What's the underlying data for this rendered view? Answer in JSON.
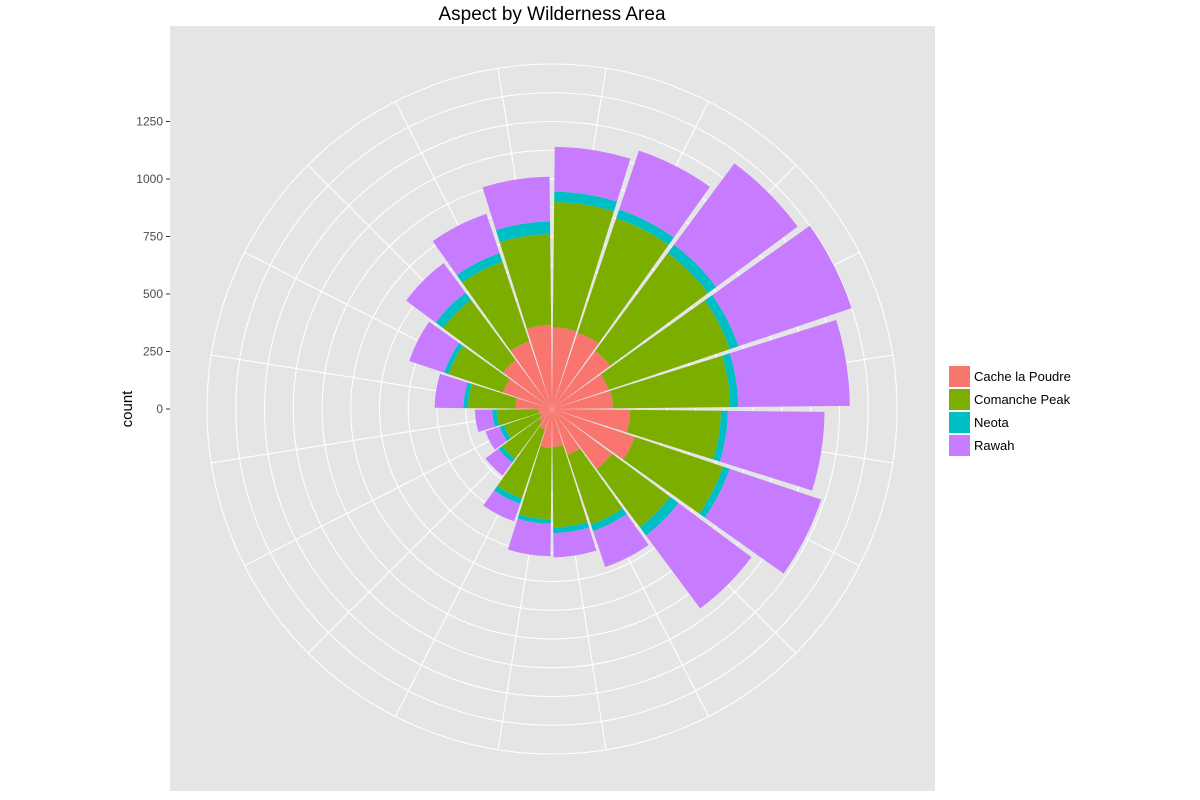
{
  "chart_data": {
    "type": "bar",
    "subtype": "polar-stacked",
    "title": "Aspect by Wilderness Area",
    "ylabel": "count",
    "xlabel": "",
    "ylim": [
      0,
      1500
    ],
    "y_ticks": [
      "0",
      "250",
      "500",
      "750",
      "1000",
      "1250"
    ],
    "y_tick_values": [
      0,
      250,
      500,
      750,
      1000,
      1250
    ],
    "grid": true,
    "legend_position": "right",
    "x_bins_count": 20,
    "x_bins_degrees": [
      9,
      27,
      45,
      63,
      81,
      99,
      117,
      135,
      153,
      171,
      189,
      207,
      225,
      243,
      261,
      279,
      297,
      315,
      333,
      351
    ],
    "series": [
      {
        "name": "Cache la Poudre",
        "color": "#F8766D",
        "values": [
          355,
          350,
          315,
          260,
          265,
          340,
          380,
          325,
          210,
          165,
          170,
          95,
          70,
          55,
          60,
          160,
          225,
          265,
          310,
          365
        ]
      },
      {
        "name": "Comanche Peak",
        "color": "#7CAE00",
        "values": [
          545,
          525,
          530,
          555,
          510,
          395,
          405,
          315,
          320,
          350,
          310,
          315,
          200,
          165,
          180,
          205,
          250,
          325,
          365,
          395
        ]
      },
      {
        "name": "Neota",
        "color": "#00BFC4",
        "values": [
          45,
          40,
          45,
          40,
          35,
          30,
          30,
          45,
          30,
          25,
          20,
          25,
          20,
          20,
          20,
          20,
          20,
          40,
          40,
          55
        ]
      },
      {
        "name": "Rawah",
        "color": "#C77CFF",
        "values": [
          195,
          270,
          440,
          520,
          485,
          420,
          420,
          395,
          165,
          105,
          140,
          80,
          70,
          65,
          75,
          125,
          160,
          160,
          180,
          195
        ]
      }
    ]
  }
}
